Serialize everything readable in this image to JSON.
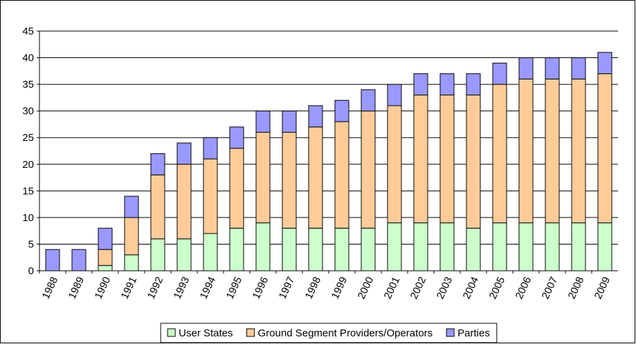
{
  "chart_data": {
    "type": "stacked-bar",
    "categories": [
      "1988",
      "1989",
      "1990",
      "1991",
      "1992",
      "1993",
      "1994",
      "1995",
      "1996",
      "1997",
      "1998",
      "1999",
      "2000",
      "2001",
      "2002",
      "2003",
      "2004",
      "2005",
      "2006",
      "2007",
      "2008",
      "2009"
    ],
    "series": [
      {
        "name": "User States",
        "color": "#ccffcc",
        "values": [
          0,
          0,
          1,
          3,
          6,
          6,
          7,
          8,
          9,
          8,
          8,
          8,
          8,
          9,
          9,
          9,
          8,
          9,
          9,
          9,
          9,
          9
        ]
      },
      {
        "name": "Ground Segment Providers/Operators",
        "color": "#ffcc99",
        "values": [
          0,
          0,
          3,
          7,
          12,
          14,
          14,
          15,
          17,
          18,
          19,
          20,
          22,
          22,
          24,
          24,
          25,
          26,
          27,
          27,
          27,
          28
        ]
      },
      {
        "name": "Parties",
        "color": "#9999ff",
        "values": [
          4,
          4,
          4,
          4,
          4,
          4,
          4,
          4,
          4,
          4,
          4,
          4,
          4,
          4,
          4,
          4,
          4,
          4,
          4,
          4,
          4,
          4
        ]
      }
    ],
    "ylim": [
      0,
      45
    ],
    "yticks": [
      0,
      5,
      10,
      15,
      20,
      25,
      30,
      35,
      40,
      45
    ],
    "grid": true,
    "legend": "bottom"
  }
}
